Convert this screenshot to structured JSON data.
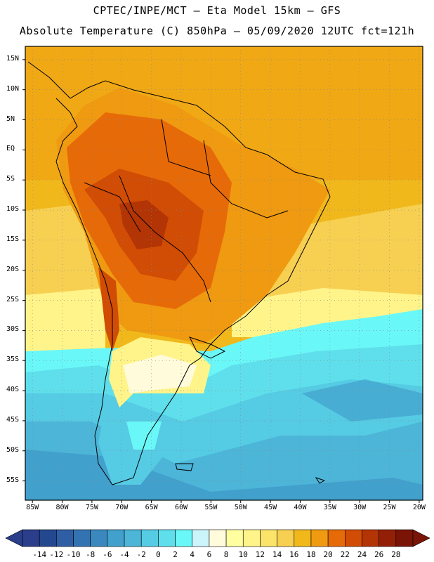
{
  "header": {
    "line1": "CPTEC/INPE/MCT –  Eta Model 15km – GFS",
    "line2": "Absolute Temperature (C) 850hPa – 05/09/2020 12UTC fct=121h"
  },
  "axes": {
    "lat_ticks": [
      {
        "value": 15,
        "label": "15N"
      },
      {
        "value": 10,
        "label": "10N"
      },
      {
        "value": 5,
        "label": "5N"
      },
      {
        "value": 0,
        "label": "EQ"
      },
      {
        "value": -5,
        "label": "5S"
      },
      {
        "value": -10,
        "label": "10S"
      },
      {
        "value": -15,
        "label": "15S"
      },
      {
        "value": -20,
        "label": "20S"
      },
      {
        "value": -25,
        "label": "25S"
      },
      {
        "value": -30,
        "label": "30S"
      },
      {
        "value": -35,
        "label": "35S"
      },
      {
        "value": -40,
        "label": "40S"
      },
      {
        "value": -45,
        "label": "45S"
      },
      {
        "value": -50,
        "label": "50S"
      },
      {
        "value": -55,
        "label": "55S"
      }
    ],
    "lon_ticks": [
      {
        "value": -85,
        "label": "85W"
      },
      {
        "value": -80,
        "label": "80W"
      },
      {
        "value": -75,
        "label": "75W"
      },
      {
        "value": -70,
        "label": "70W"
      },
      {
        "value": -65,
        "label": "65W"
      },
      {
        "value": -60,
        "label": "60W"
      },
      {
        "value": -55,
        "label": "55W"
      },
      {
        "value": -50,
        "label": "50W"
      },
      {
        "value": -45,
        "label": "45W"
      },
      {
        "value": -40,
        "label": "40W"
      },
      {
        "value": -35,
        "label": "35W"
      },
      {
        "value": -30,
        "label": "30W"
      },
      {
        "value": -25,
        "label": "25W"
      },
      {
        "value": -20,
        "label": "20W"
      }
    ]
  },
  "colorbar": {
    "labels": [
      "-14",
      "-12",
      "-10",
      "-8",
      "-6",
      "-4",
      "-2",
      "0",
      "2",
      "4",
      "6",
      "8",
      "10",
      "12",
      "14",
      "16",
      "18",
      "20",
      "22",
      "24",
      "26",
      "28"
    ],
    "colors": [
      "#2a3e8c",
      "#24488f",
      "#2e5ea3",
      "#3473b2",
      "#3a88be",
      "#42a0cc",
      "#4cb5d8",
      "#55cbe4",
      "#5fdfeb",
      "#6af7f7",
      "#ccf5fb",
      "#fffbdb",
      "#ffffa0",
      "#fff48a",
      "#fbe46a",
      "#f7d052",
      "#f1b81c",
      "#ef9a10",
      "#e76a08",
      "#d14c04",
      "#b33404",
      "#932006",
      "#7a1407"
    ]
  }
}
